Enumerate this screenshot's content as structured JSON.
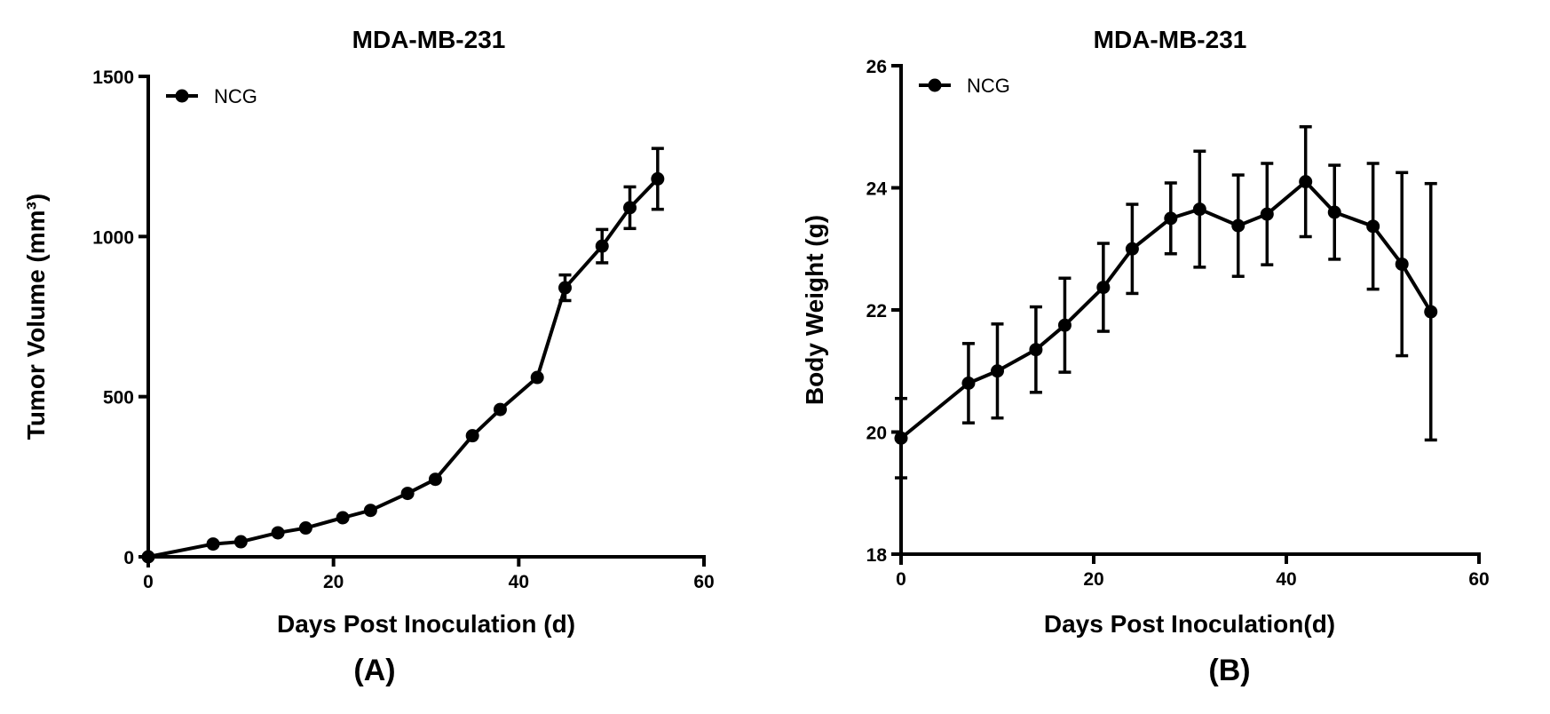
{
  "chart_data": [
    {
      "type": "line",
      "panel_label": "(A)",
      "title": "MDA-MB-231",
      "xlabel": "Days Post Inoculation (d)",
      "ylabel": "Tumor Volume (mm³)",
      "xlim": [
        0,
        60
      ],
      "ylim": [
        0,
        1500
      ],
      "xticks": [
        "0",
        "20",
        "40",
        "60"
      ],
      "yticks": [
        "0",
        "500",
        "1000",
        "1500"
      ],
      "legend_position": "top-left",
      "series": [
        {
          "name": "NCG",
          "x": [
            0,
            7,
            10,
            14,
            17,
            21,
            24,
            28,
            31,
            35,
            38,
            42,
            45,
            49,
            52,
            55
          ],
          "y": [
            0,
            40,
            47,
            75,
            90,
            122,
            145,
            198,
            242,
            378,
            460,
            560,
            840,
            970,
            1090,
            1180
          ],
          "err": [
            0,
            0,
            0,
            0,
            0,
            0,
            0,
            0,
            0,
            0,
            0,
            0,
            40,
            52,
            65,
            95
          ]
        }
      ]
    },
    {
      "type": "line",
      "panel_label": "(B)",
      "title": "MDA-MB-231",
      "xlabel": "Days Post Inoculation(d)",
      "ylabel": "Body Weight (g)",
      "xlim": [
        0,
        60
      ],
      "ylim": [
        18,
        26
      ],
      "xticks": [
        "0",
        "20",
        "40",
        "60"
      ],
      "yticks": [
        "18",
        "20",
        "22",
        "24",
        "26"
      ],
      "legend_position": "top-left",
      "series": [
        {
          "name": "NCG",
          "x": [
            0,
            7,
            10,
            14,
            17,
            21,
            24,
            28,
            31,
            35,
            38,
            42,
            45,
            49,
            52,
            55
          ],
          "y": [
            19.9,
            20.8,
            21.0,
            21.35,
            21.75,
            22.37,
            23.0,
            23.5,
            23.65,
            23.38,
            23.57,
            24.1,
            23.6,
            23.37,
            22.75,
            21.97
          ],
          "err": [
            0.65,
            0.65,
            0.77,
            0.7,
            0.77,
            0.72,
            0.73,
            0.58,
            0.95,
            0.83,
            0.83,
            0.9,
            0.77,
            1.03,
            1.5,
            2.1
          ]
        }
      ]
    }
  ]
}
